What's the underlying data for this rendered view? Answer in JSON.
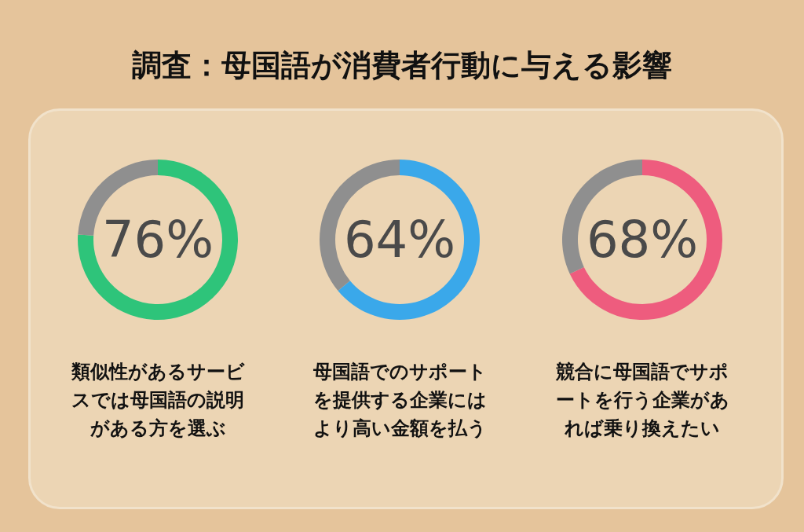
{
  "chart_data": [
    {
      "type": "donut",
      "title": "調査：母国語が消費者行動に与える影響",
      "categories": [
        null,
        null
      ],
      "values": [
        76,
        24
      ],
      "colors": [
        "#2ec47a",
        "#8f8f8f"
      ],
      "value_labels": [
        "76%",
        null
      ],
      "annotations": [
        "類似性があるサービスでは母国語の説明がある方を選ぶ"
      ]
    },
    {
      "type": "donut",
      "categories": [
        null,
        null
      ],
      "values": [
        64,
        36
      ],
      "colors": [
        "#3aa8ea",
        "#8f8f8f"
      ],
      "value_labels": [
        "64%",
        null
      ],
      "annotations": [
        "母国語でのサポートを提供する企業にはより高い金額を払う"
      ]
    },
    {
      "type": "donut",
      "categories": [
        null,
        null
      ],
      "values": [
        68,
        32
      ],
      "colors": [
        "#ee5c7e",
        "#8f8f8f"
      ],
      "value_labels": [
        "68%",
        null
      ],
      "annotations": [
        "競合に母国語でサポートを行う企業があれば乗り換えたい"
      ]
    }
  ]
}
